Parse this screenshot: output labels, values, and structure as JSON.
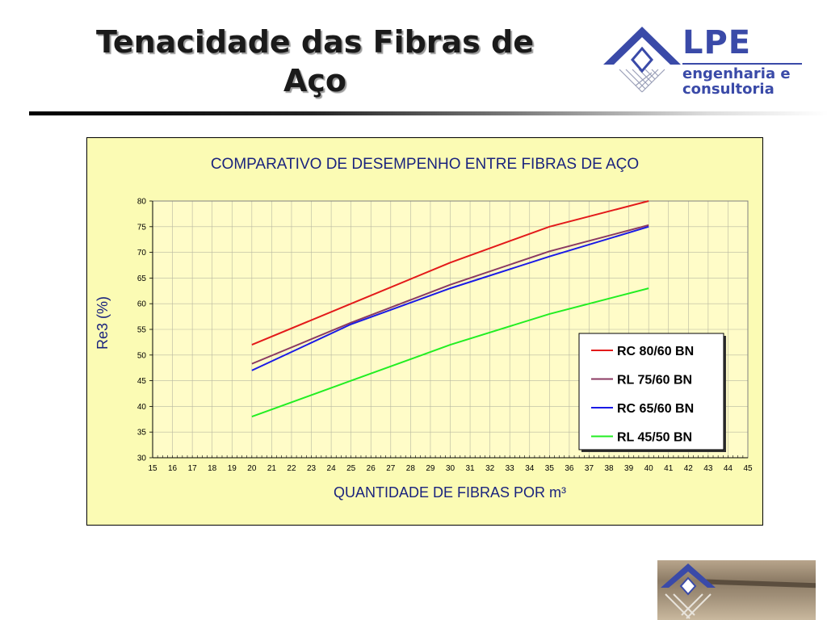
{
  "slide": {
    "title_line1": "Tenacidade das Fibras de",
    "title_line2": "Aço"
  },
  "logo": {
    "name": "LPE",
    "sub1": "engenharia e",
    "sub2": "consultoria",
    "color": "#3a4aa8"
  },
  "chart_data": {
    "type": "line",
    "title": "COMPARATIVO DE DESEMPENHO ENTRE FIBRAS DE AÇO",
    "xlabel": "QUANTIDADE DE FIBRAS POR m³",
    "ylabel": "Re3 (%)",
    "xlim": [
      15,
      45
    ],
    "ylim": [
      30,
      80
    ],
    "xticks": [
      15,
      16,
      17,
      18,
      19,
      20,
      21,
      22,
      23,
      24,
      25,
      26,
      27,
      28,
      29,
      30,
      31,
      32,
      33,
      34,
      35,
      36,
      37,
      38,
      39,
      40,
      41,
      42,
      43,
      44,
      45
    ],
    "yticks": [
      30,
      35,
      40,
      45,
      50,
      55,
      60,
      65,
      70,
      75,
      80
    ],
    "grid": true,
    "legend_position": "right",
    "background_color": "#fbfbb4",
    "series": [
      {
        "name": "RC 80/60 BN",
        "color": "#e31a1a",
        "x": [
          20,
          25,
          30,
          35,
          40
        ],
        "y": [
          52,
          60,
          68,
          75,
          80
        ]
      },
      {
        "name": "RL 75/60 BN",
        "color": "#8b3a62",
        "x": [
          20,
          25,
          30,
          35,
          40
        ],
        "y": [
          48.3,
          56.3,
          63.7,
          70.2,
          75.3
        ]
      },
      {
        "name": "RC 65/60 BN",
        "color": "#1a1ae6",
        "x": [
          20,
          25,
          30,
          35,
          40
        ],
        "y": [
          47,
          56,
          63,
          69.2,
          75
        ]
      },
      {
        "name": "RL 45/50 BN",
        "color": "#22ee22",
        "x": [
          20,
          25,
          30,
          35,
          40
        ],
        "y": [
          38,
          45,
          52,
          58,
          63
        ]
      }
    ]
  }
}
